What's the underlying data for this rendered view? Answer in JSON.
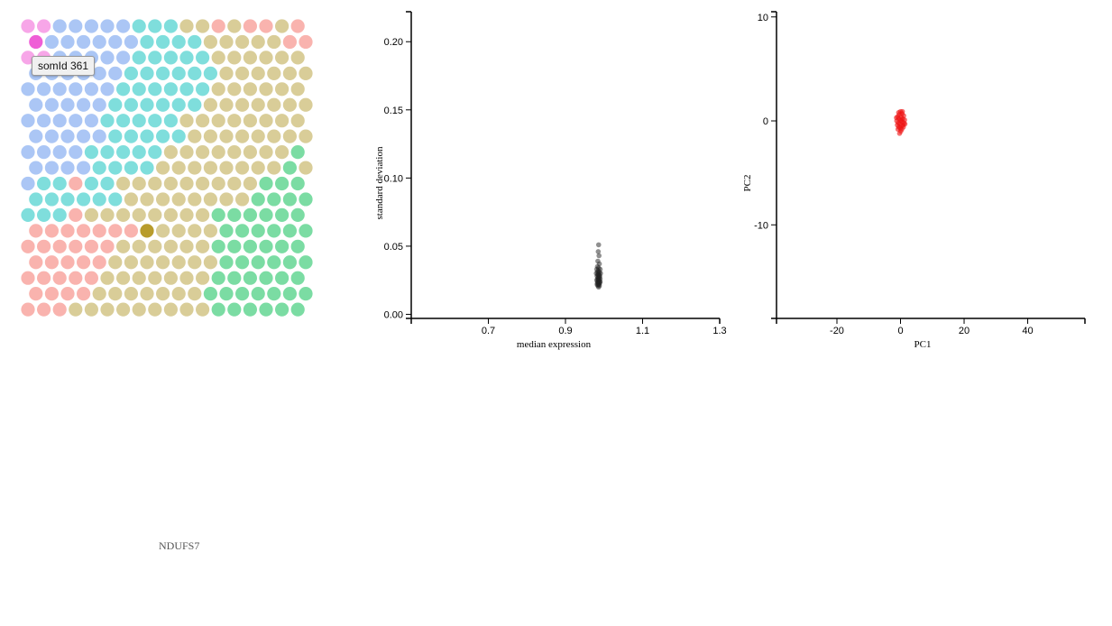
{
  "som": {
    "tooltip": "somId 361",
    "palette": {
      "P": "#f7a6e8",
      "M": "#ef5ed6",
      "B": "#abc6f5",
      "C": "#7fdedc",
      "T": "#d9cd98",
      "R": "#f9b3ae",
      "G": "#7bdca3",
      "O": "#b89c2c"
    },
    "rows": [
      "PPBBBBBCCCTTRTRRTR",
      "MBBBBBBCCCCTTTTTRR",
      "PPBBBBBCCCCCTTTTTT",
      "BBBBBBCCCCCCTTTTTT",
      "BBBBBBCCCCCCTTTTTT",
      "BBBBBCCCCCCTTTTTTT",
      "BBBBBCCCCCTTTTTTTT",
      "BBBBBCCCCCTTTTTTTT",
      "BBBBCCCCCTTTTTTTTG",
      "BBBBCCCCTTTTTTTTGT",
      "BCCRCCTTTTTTTTTGGG",
      "CCCCCCTTTTTTTTGGGG",
      "CCCRTTTTTTTTGGGGGG",
      "RRRRRRROTTTTGGGGGG",
      "RRRRRRTTTTTTGGGGGG",
      "RRRRRTTTTTTTGGGGGG",
      "RRRRRTTTTTTTGGGGGG",
      "RRRRTTTTTTTGGGGGGG",
      "RRRTTTTTTTTTGGGGGG"
    ]
  },
  "gene_label": "NDUFS7",
  "chart_data": [
    {
      "type": "scatter",
      "xlabel": "median expression",
      "ylabel": "standard deviation",
      "xlim": [
        0.5,
        1.3
      ],
      "ylim": [
        -0.003,
        0.222
      ],
      "x_ticks": [
        "0.7",
        "0.9",
        "1.1",
        "1.3"
      ],
      "y_ticks": [
        "0.00",
        "0.05",
        "0.10",
        "0.15",
        "0.20"
      ],
      "point_color": "#222222",
      "points": [
        [
          0.986,
          0.051
        ],
        [
          0.985,
          0.046
        ],
        [
          0.987,
          0.043
        ],
        [
          0.984,
          0.039
        ],
        [
          0.988,
          0.037
        ],
        [
          0.983,
          0.035
        ],
        [
          0.986,
          0.034
        ],
        [
          0.99,
          0.033
        ],
        [
          0.981,
          0.033
        ],
        [
          0.985,
          0.032
        ],
        [
          0.988,
          0.031
        ],
        [
          0.983,
          0.031
        ],
        [
          0.986,
          0.03
        ],
        [
          0.991,
          0.03
        ],
        [
          0.98,
          0.03
        ],
        [
          0.984,
          0.029
        ],
        [
          0.987,
          0.029
        ],
        [
          0.989,
          0.028
        ],
        [
          0.982,
          0.028
        ],
        [
          0.986,
          0.028
        ],
        [
          0.985,
          0.027
        ],
        [
          0.988,
          0.027
        ],
        [
          0.983,
          0.026
        ],
        [
          0.986,
          0.026
        ],
        [
          0.99,
          0.026
        ],
        [
          0.981,
          0.025
        ],
        [
          0.985,
          0.025
        ],
        [
          0.987,
          0.025
        ],
        [
          0.984,
          0.024
        ],
        [
          0.988,
          0.024
        ],
        [
          0.986,
          0.023
        ],
        [
          0.983,
          0.023
        ],
        [
          0.989,
          0.023
        ],
        [
          0.985,
          0.022
        ],
        [
          0.987,
          0.022
        ],
        [
          0.984,
          0.021
        ],
        [
          0.986,
          0.02
        ],
        [
          0.988,
          0.021
        ],
        [
          0.982,
          0.022
        ],
        [
          0.99,
          0.024
        ]
      ]
    },
    {
      "type": "scatter",
      "xlabel": "PC1",
      "ylabel": "PC2",
      "xlim": [
        -39,
        58
      ],
      "ylim": [
        -19,
        10.5
      ],
      "x_ticks": [
        "-20",
        "0",
        "20",
        "40"
      ],
      "y_ticks": [
        "-10",
        "0",
        "10"
      ],
      "point_color": "#ee1111",
      "points": [
        [
          0.0,
          0.9
        ],
        [
          0.5,
          0.7
        ],
        [
          -0.4,
          0.6
        ],
        [
          1.0,
          0.5
        ],
        [
          -0.9,
          0.4
        ],
        [
          0.2,
          0.4
        ],
        [
          0.7,
          0.2
        ],
        [
          -0.5,
          0.2
        ],
        [
          1.3,
          0.1
        ],
        [
          -1.2,
          0.0
        ],
        [
          0.0,
          0.0
        ],
        [
          0.5,
          -0.1
        ],
        [
          -0.7,
          -0.2
        ],
        [
          1.1,
          -0.2
        ],
        [
          -0.2,
          -0.3
        ],
        [
          0.8,
          -0.4
        ],
        [
          -1.0,
          -0.4
        ],
        [
          0.3,
          -0.5
        ],
        [
          -0.5,
          -0.6
        ],
        [
          0.9,
          -0.6
        ],
        [
          -0.1,
          -0.7
        ],
        [
          0.4,
          -0.8
        ],
        [
          -0.8,
          -0.8
        ],
        [
          0.1,
          -1.0
        ],
        [
          -0.3,
          -1.2
        ],
        [
          0.6,
          0.9
        ],
        [
          -0.6,
          0.8
        ],
        [
          1.4,
          -0.3
        ],
        [
          -1.3,
          0.3
        ],
        [
          0.2,
          0.1
        ]
      ]
    }
  ]
}
